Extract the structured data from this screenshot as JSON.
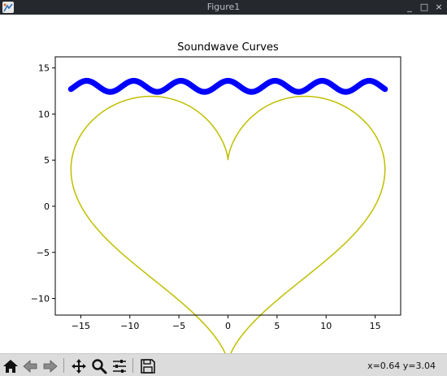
{
  "window": {
    "title": "Figure1",
    "minimize_glyph": "_",
    "maximize_glyph": "□",
    "close_glyph": "×"
  },
  "toolbar": {
    "buttons": [
      {
        "name": "home-button",
        "icon": "home-icon"
      },
      {
        "name": "back-button",
        "icon": "arrow-left-icon"
      },
      {
        "name": "forward-button",
        "icon": "arrow-right-icon"
      },
      {
        "name": "pan-button",
        "icon": "move-icon"
      },
      {
        "name": "zoom-button",
        "icon": "magnifier-icon"
      },
      {
        "name": "configure-subplots-button",
        "icon": "sliders-icon"
      },
      {
        "name": "save-button",
        "icon": "floppy-disk-icon"
      }
    ],
    "coordinates": "x=0.64 y=3.04"
  },
  "chart_data": {
    "type": "line",
    "title": "Soundwave Curves",
    "xlabel": "",
    "ylabel": "",
    "xlim": [
      -17.6,
      17.6
    ],
    "ylim": [
      -11.8,
      16.2
    ],
    "xticks": [
      -15,
      -10,
      -5,
      0,
      5,
      10,
      15
    ],
    "yticks": [
      -10,
      -5,
      0,
      5,
      10,
      15
    ],
    "grid": false,
    "legend": null,
    "series": [
      {
        "kind": "line",
        "color": "#bfbf00",
        "equation": "x = 16·sin(t)^3 ; y = 13·cos(t) − 5·cos(2t) − 2·cos(3t) − cos(4t)",
        "t_range": [
          0,
          6.2832
        ]
      },
      {
        "kind": "scatter",
        "color": "#0000ff",
        "equation": "y = 13 + 0.6·cos(x·π/2.4)",
        "x_range": [
          -16,
          16
        ],
        "point_count": 321
      }
    ]
  }
}
